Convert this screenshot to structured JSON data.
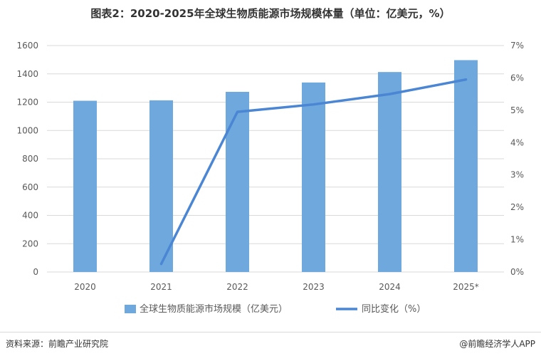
{
  "title": "图表2：2020-2025年全球生物质能源市场规模体量（单位：亿美元，%）",
  "footer": {
    "source": "资料来源：前瞻产业研究院",
    "brand": "@前瞻经济学人APP"
  },
  "chart_data": {
    "type": "bar",
    "categories": [
      "2020",
      "2021",
      "2022",
      "2023",
      "2024",
      "2025*"
    ],
    "series": [
      {
        "name": "全球生物质能源市场规模（亿美元）",
        "type": "bar",
        "axis": "left",
        "values": [
          1210,
          1213,
          1273,
          1339,
          1413,
          1497
        ]
      },
      {
        "name": "同比变化（%）",
        "type": "line",
        "axis": "right",
        "values": [
          null,
          0.25,
          4.95,
          5.18,
          5.5,
          5.95
        ]
      }
    ],
    "y_left": {
      "min": 0,
      "max": 1600,
      "ticks": [
        "0",
        "200",
        "400",
        "600",
        "800",
        "1000",
        "1200",
        "1400",
        "1600"
      ]
    },
    "y_right": {
      "min": 0,
      "max": 7,
      "ticks": [
        "0%",
        "1%",
        "2%",
        "3%",
        "4%",
        "5%",
        "6%",
        "7%"
      ]
    },
    "grid": true,
    "legend_position": "bottom",
    "colors": {
      "bar": "#6fa8dc",
      "line": "#4a86d4",
      "grid": "#d9d9d9",
      "axis_text": "#595959"
    }
  }
}
